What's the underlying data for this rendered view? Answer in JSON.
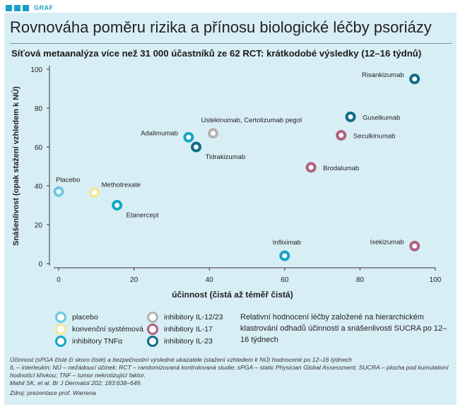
{
  "badge": {
    "label": "GRAF",
    "color": "#1aa0c8"
  },
  "title": "Rovnováha poměru rizika a přínosu biologické léčby psoriázy",
  "subtitle": "Síťová metaanalýza více než 31 000 účastníků ze 62 RCT: krátkodobé výsledky (12–16 týdnů)",
  "colors": {
    "placebo": "#6cc8df",
    "konvencni": "#f3e79a",
    "tnf": "#13a6c6",
    "il1223": "#b3b3b3",
    "il17": "#b0607e",
    "il23": "#0f6d86"
  },
  "chart_data": {
    "type": "scatter",
    "xlabel": "účinnost (čistá až téměř čistá)",
    "ylabel": "Snášenlivost (opak stažení vzhledem k NÚ)",
    "xlim": [
      0,
      100
    ],
    "ylim": [
      0,
      100
    ],
    "xticks": [
      0,
      20,
      40,
      60,
      80,
      100
    ],
    "yticks": [
      0,
      20,
      40,
      60,
      80,
      100
    ],
    "grid": false,
    "points": [
      {
        "label": "Placebo",
        "x": 0,
        "y": 37,
        "group": "placebo",
        "labelPos": "above"
      },
      {
        "label": "Methotrexate",
        "x": 9.5,
        "y": 36.5,
        "group": "konvencni",
        "labelPos": "upright"
      },
      {
        "label": "Etanercept",
        "x": 15.5,
        "y": 30,
        "group": "tnf",
        "labelPos": "lowright"
      },
      {
        "label": "Adalimumab",
        "x": 34.5,
        "y": 65,
        "group": "tnf",
        "labelPos": "left"
      },
      {
        "label": "Tidrakizumab",
        "x": 36.5,
        "y": 60,
        "group": "il23",
        "labelPos": "lowright"
      },
      {
        "label": "Ustekinumab, Certolizumab pegol",
        "x": 41,
        "y": 67,
        "group": "il1223",
        "labelPos": "aboveright"
      },
      {
        "label": "Infliximab",
        "x": 60,
        "y": 4,
        "group": "tnf",
        "labelPos": "aboveright"
      },
      {
        "label": "Brodalumab",
        "x": 67,
        "y": 49.5,
        "group": "il17",
        "labelPos": "right"
      },
      {
        "label": "Seculkinumab",
        "x": 75,
        "y": 66,
        "group": "il17",
        "labelPos": "right"
      },
      {
        "label": "Guselkumab",
        "x": 77.5,
        "y": 75.5,
        "group": "il23",
        "labelPos": "right"
      },
      {
        "label": "Risankizumab",
        "x": 94.5,
        "y": 95,
        "group": "il23",
        "labelPos": "left"
      },
      {
        "label": "Ixekizumab",
        "x": 94.5,
        "y": 9,
        "group": "il17",
        "labelPos": "left"
      }
    ]
  },
  "legend": [
    {
      "label": "placebo",
      "group": "placebo"
    },
    {
      "label": "konvenční systémová",
      "group": "konvencni"
    },
    {
      "label": "inhibitory TNFα",
      "group": "tnf"
    },
    {
      "label": "inhibitory IL-12/23",
      "group": "il1223"
    },
    {
      "label": "inhibitory IL-17",
      "group": "il17"
    },
    {
      "label": "inhibitory IL-23",
      "group": "il23"
    }
  ],
  "note": "Relativní hodnocení léčby založené na hierarchickém klastrování odhadů účinnosti a snášenlivosti SUCRA po 12–16 týdnech",
  "footnotes": [
    "Účinnost (sPGA čisté či skoro čisté) a bezpečnostní výsledné ukazatele (stažení vzhledem k NÚ) hodnocené po 12–16 týdnech",
    "IL – interleukin; NÚ – nežádoucí účinek; RCT – randomizovaná kontrolovaná studie; sPGA – static Physician Global Assessment; SUCRA – plocha pod kumulativní hodnotící křivkou; TNF – tumor nekrotizující faktor.",
    "Mahil SK, et al. Br J Dermatol 202; 183:638–649.",
    "Zdroj: prezentace prof. Warrena"
  ]
}
